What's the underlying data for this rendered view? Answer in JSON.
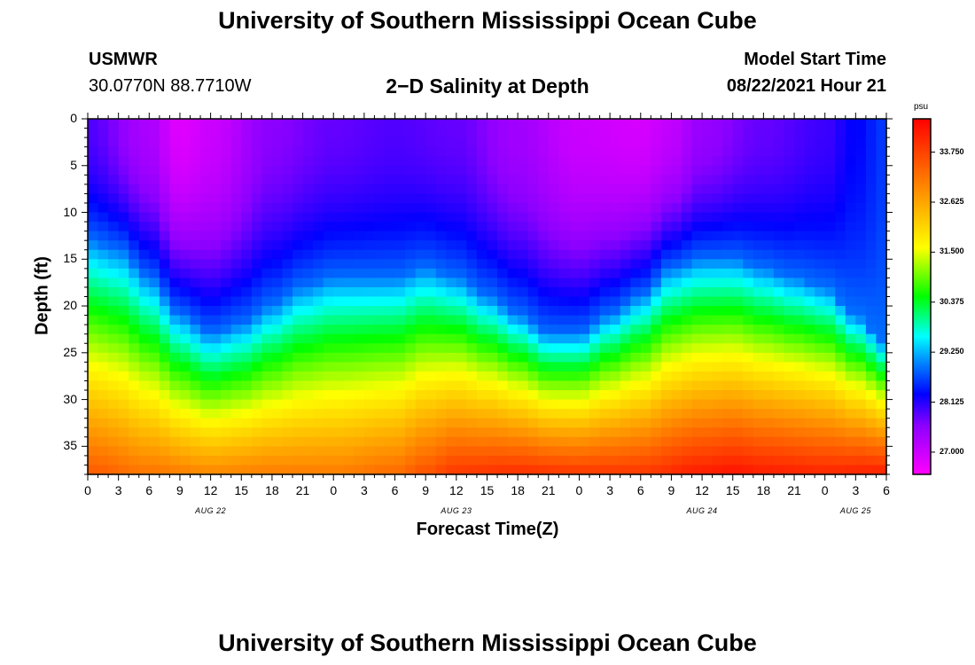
{
  "header": {
    "title": "University of Southern Mississippi Ocean Cube",
    "station": "USMWR",
    "coords": "30.0770N  88.7710W",
    "chart_title": "2−D Salinity at Depth",
    "model_start_label": "Model Start Time",
    "model_start_value": "08/22/2021 Hour 21"
  },
  "footer": {
    "title": "University of Southern Mississippi Ocean Cube"
  },
  "colors": {
    "background": "#ffffff",
    "scale_low": "#ff00ff",
    "scale_high": "#ff0000"
  },
  "chart_data": {
    "type": "heatmap",
    "title": "2−D Salinity at Depth",
    "xlabel": "Forecast Time(Z)",
    "ylabel": "Depth (ft)",
    "x_range_hours": [
      0,
      78
    ],
    "y_range_ft": [
      0,
      38
    ],
    "x_tick_labels": [
      "0",
      "3",
      "6",
      "9",
      "12",
      "15",
      "18",
      "21",
      "0",
      "3",
      "6",
      "9",
      "12",
      "15",
      "18",
      "21",
      "0",
      "3",
      "6",
      "9",
      "12",
      "15",
      "18",
      "21",
      "0",
      "3",
      "6"
    ],
    "y_tick_labels": [
      "0",
      "5",
      "10",
      "15",
      "20",
      "25",
      "30",
      "35"
    ],
    "y_tick_values": [
      0,
      5,
      10,
      15,
      20,
      25,
      30,
      35
    ],
    "day_labels": [
      {
        "label": "AUG 22",
        "hour": 12
      },
      {
        "label": "AUG 23",
        "hour": 36
      },
      {
        "label": "AUG 24",
        "hour": 60
      },
      {
        "label": "AUG 25",
        "hour": 75
      }
    ],
    "colorbar": {
      "unit": "psu",
      "min": 26.5,
      "max": 34.5,
      "tick_labels": [
        "33.750",
        "32.625",
        "31.500",
        "30.375",
        "29.250",
        "28.125",
        "27.000"
      ],
      "tick_values": [
        33.75,
        32.625,
        31.5,
        30.375,
        29.25,
        28.125,
        27.0
      ],
      "color_stops": [
        {
          "value": 26.5,
          "color": "#ff00ff"
        },
        {
          "value": 27.6,
          "color": "#8c00ff"
        },
        {
          "value": 28.3,
          "color": "#0000ff"
        },
        {
          "value": 29.1,
          "color": "#0096ff"
        },
        {
          "value": 29.6,
          "color": "#00ffff"
        },
        {
          "value": 30.5,
          "color": "#00ff00"
        },
        {
          "value": 31.6,
          "color": "#ffff00"
        },
        {
          "value": 32.8,
          "color": "#ff9600"
        },
        {
          "value": 34.5,
          "color": "#ff0000"
        }
      ]
    },
    "surface_salinity_series": {
      "hours": [
        0,
        6,
        9,
        12,
        18,
        24,
        30,
        36,
        42,
        48,
        54,
        57,
        60,
        66,
        72,
        75,
        78
      ],
      "psu": [
        27.9,
        27.3,
        26.8,
        27.0,
        27.6,
        27.8,
        27.9,
        27.8,
        27.4,
        27.0,
        26.9,
        27.1,
        27.5,
        27.8,
        28.0,
        28.3,
        28.6
      ]
    },
    "halocline_depth_series": {
      "hours": [
        0,
        3,
        6,
        9,
        12,
        15,
        18,
        21,
        24,
        27,
        30,
        33,
        36,
        39,
        42,
        45,
        48,
        51,
        54,
        57,
        60,
        63,
        66,
        69,
        72,
        75,
        78
      ],
      "depth_ft": [
        13,
        14,
        17,
        21,
        23,
        22,
        20,
        18,
        17,
        17,
        17,
        16,
        17,
        19,
        21,
        23,
        23,
        21,
        19,
        16,
        15,
        15,
        16,
        17,
        18,
        21,
        24
      ]
    },
    "deep_salinity_series": {
      "hours": [
        0,
        6,
        12,
        18,
        24,
        30,
        33,
        36,
        42,
        48,
        54,
        60,
        63,
        66,
        72,
        78
      ],
      "psu": [
        33.5,
        33.2,
        33.0,
        33.1,
        33.1,
        33.3,
        33.6,
        33.9,
        34.0,
        33.9,
        33.9,
        34.2,
        34.3,
        34.2,
        34.1,
        34.2
      ]
    }
  }
}
